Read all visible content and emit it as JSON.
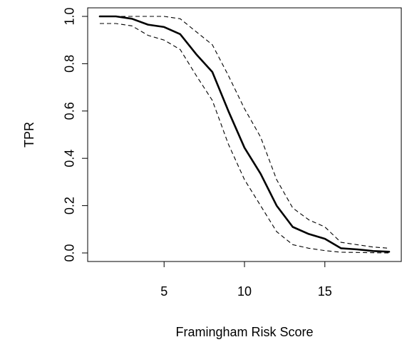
{
  "chart_data": {
    "type": "line",
    "title": "",
    "xlabel": "Framingham Risk Score",
    "ylabel": "TPR",
    "xlim": [
      1,
      19
    ],
    "ylim": [
      0.0,
      1.0
    ],
    "x_ticks": [
      5,
      10,
      15
    ],
    "x_tick_labels": [
      "5",
      "10",
      "15"
    ],
    "y_ticks": [
      0.0,
      0.2,
      0.4,
      0.6,
      0.8,
      1.0
    ],
    "y_tick_labels": [
      "0.0",
      "0.2",
      "0.4",
      "0.6",
      "0.8",
      "1.0"
    ],
    "grid": false,
    "x": [
      1,
      2,
      3,
      4,
      5,
      6,
      7,
      8,
      9,
      10,
      11,
      12,
      13,
      14,
      15,
      16,
      17,
      18,
      19
    ],
    "series": [
      {
        "role": "estimate",
        "style": "solid",
        "values": [
          1.0,
          1.0,
          0.99,
          0.965,
          0.955,
          0.925,
          0.84,
          0.765,
          0.6,
          0.445,
          0.335,
          0.2,
          0.11,
          0.08,
          0.06,
          0.02,
          0.015,
          0.008,
          0.005
        ]
      },
      {
        "role": "upper",
        "style": "dashed",
        "values": [
          1.0,
          1.0,
          1.0,
          1.0,
          1.0,
          0.99,
          0.935,
          0.88,
          0.75,
          0.61,
          0.49,
          0.31,
          0.19,
          0.14,
          0.11,
          0.045,
          0.035,
          0.025,
          0.02
        ]
      },
      {
        "role": "lower",
        "style": "dashed",
        "values": [
          0.97,
          0.97,
          0.96,
          0.92,
          0.9,
          0.86,
          0.75,
          0.645,
          0.46,
          0.31,
          0.2,
          0.09,
          0.035,
          0.02,
          0.01,
          0.003,
          0.002,
          0.001,
          0.0
        ]
      }
    ]
  }
}
